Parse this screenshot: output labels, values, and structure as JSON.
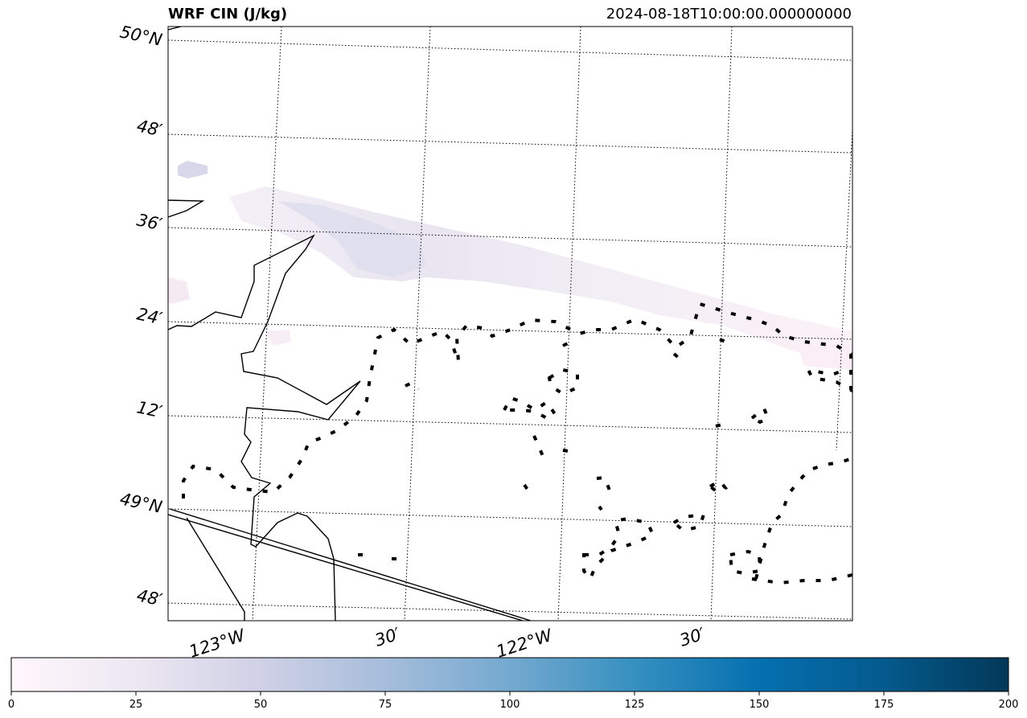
{
  "header": {
    "title": "WRF CIN (J/kg)",
    "timestamp": "2024-08-18T10:00:00.000000000"
  },
  "map": {
    "lat_labels": [
      "50°N",
      "48′",
      "36′",
      "24′",
      "12′",
      "49°N",
      "48′"
    ],
    "lon_labels": [
      "123°W",
      "30′",
      "122°W",
      "30′"
    ],
    "gridline_style": "dotted",
    "coastline_color": "#000000",
    "cin_field": {
      "colormap": "PuBu",
      "description_visible": "faint band of low CIN values in the northern half"
    }
  },
  "colorbar": {
    "ticks": [
      "0",
      "25",
      "50",
      "75",
      "100",
      "125",
      "150",
      "175",
      "200"
    ],
    "min": 0,
    "max": 200,
    "colors": [
      "#fff7fb",
      "#ece7f2",
      "#d0d1e6",
      "#a6bddb",
      "#74a9cf",
      "#3690c0",
      "#0570b0",
      "#045a8d",
      "#023858"
    ]
  }
}
